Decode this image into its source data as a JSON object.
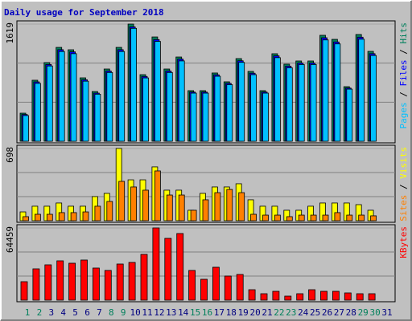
{
  "title": "Daily usage for September 2018",
  "chart_data": [
    {
      "type": "bar",
      "ylim": [
        0,
        1619
      ],
      "yticks": [
        1619
      ],
      "legend_separator": " / ",
      "series": [
        {
          "name": "Hits",
          "color": "#00805c",
          "values": [
            388,
            843,
            1087,
            1297,
            1264,
            876,
            687,
            998,
            1297,
            1619,
            920,
            1441,
            998,
            1164,
            699,
            699,
            943,
            821,
            1142,
            965,
            699,
            1209,
            1065,
            1109,
            1109,
            1464,
            1408,
            754,
            1475,
            1242,
            null
          ]
        },
        {
          "name": "Files",
          "color": "#0000ff",
          "values": [
            370,
            820,
            1060,
            1265,
            1235,
            850,
            665,
            970,
            1265,
            1580,
            895,
            1405,
            970,
            1135,
            680,
            680,
            918,
            800,
            1112,
            940,
            680,
            1180,
            1038,
            1080,
            1080,
            1430,
            1372,
            735,
            1438,
            1210,
            null
          ]
        },
        {
          "name": "Pages",
          "color": "#00c0ff",
          "values": [
            355,
            800,
            1040,
            1240,
            1210,
            830,
            650,
            950,
            1240,
            1560,
            875,
            1380,
            950,
            1110,
            665,
            665,
            898,
            782,
            1090,
            920,
            665,
            1155,
            1015,
            1060,
            1060,
            1400,
            1345,
            720,
            1410,
            1185,
            null
          ]
        }
      ]
    },
    {
      "type": "bar",
      "ylim": [
        0,
        698
      ],
      "yticks": [
        698
      ],
      "legend_separator": " / ",
      "series": [
        {
          "name": "Visits",
          "color": "#ffff00",
          "values": [
            85,
            140,
            140,
            171,
            140,
            140,
            233,
            264,
            698,
            395,
            395,
            520,
            295,
            295,
            101,
            264,
            326,
            326,
            357,
            202,
            140,
            140,
            101,
            101,
            140,
            171,
            171,
            171,
            155,
            101,
            null
          ]
        },
        {
          "name": "Sites",
          "color": "#ff8000",
          "values": [
            39,
            62,
            62,
            78,
            78,
            85,
            140,
            186,
            380,
            326,
            295,
            481,
            248,
            248,
            101,
            202,
            271,
            302,
            271,
            62,
            54,
            54,
            39,
            54,
            54,
            54,
            78,
            54,
            54,
            47,
            null
          ]
        }
      ]
    },
    {
      "type": "bar",
      "ylim": [
        0,
        64459
      ],
      "yticks": [
        64459
      ],
      "categories": [
        "1",
        "2",
        "3",
        "4",
        "5",
        "6",
        "7",
        "8",
        "9",
        "10",
        "11",
        "12",
        "13",
        "14",
        "15",
        "16",
        "17",
        "18",
        "19",
        "20",
        "21",
        "22",
        "23",
        "24",
        "25",
        "26",
        "27",
        "28",
        "29",
        "30",
        "31"
      ],
      "label_colors": [
        "#00805c",
        "#00805c",
        "#000080",
        "#000080",
        "#000080",
        "#000080",
        "#000080",
        "#00805c",
        "#00805c",
        "#000080",
        "#000080",
        "#000080",
        "#000080",
        "#000080",
        "#00805c",
        "#00805c",
        "#000080",
        "#000080",
        "#000080",
        "#000080",
        "#000080",
        "#00805c",
        "#00805c",
        "#000080",
        "#000080",
        "#000080",
        "#000080",
        "#000080",
        "#00805c",
        "#00805c",
        "#000080"
      ],
      "series": [
        {
          "name": "KBytes",
          "color": "#ff0000",
          "values": [
            16473,
            27933,
            31514,
            35095,
            32946,
            35811,
            28649,
            26500,
            32230,
            33662,
            40824,
            64459,
            55148,
            59445,
            26500,
            18621,
            29365,
            21486,
            22919,
            9311,
            5730,
            7878,
            3581,
            5730,
            9311,
            7878,
            7878,
            6446,
            5730,
            5730,
            null
          ]
        }
      ]
    }
  ]
}
